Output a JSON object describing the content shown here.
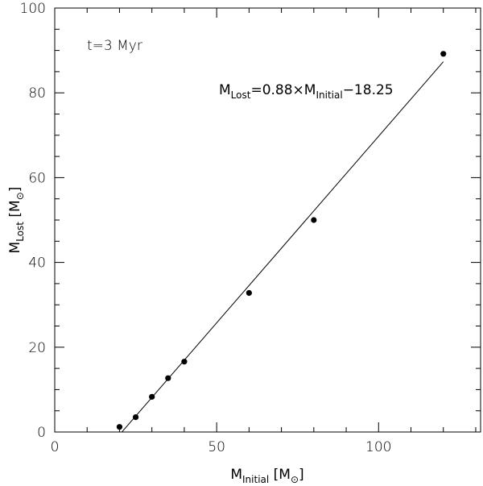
{
  "chart_data": {
    "type": "scatter",
    "annotation_time": "t=3 Myr",
    "fit_label": {
      "lhs_main": "M",
      "lhs_sub": "Lost",
      "mid": "=0.88×M",
      "rhs_sub": "Initial",
      "tail": "−18.25"
    },
    "fit": {
      "slope": 0.88,
      "intercept": -18.25,
      "x_range": [
        20.7,
        120
      ]
    },
    "xlabel": {
      "main": "M",
      "sub": "Initial",
      "unit_open": " [M",
      "unit_sym": "⊙",
      "unit_close": "]"
    },
    "ylabel": {
      "main": "M",
      "sub": "Lost",
      "unit_open": " [M",
      "unit_sym": "⊙",
      "unit_close": "]"
    },
    "xlim": [
      0,
      131.5
    ],
    "ylim": [
      0,
      100
    ],
    "x_ticks": [
      0,
      50,
      100
    ],
    "x_tick_labels": [
      "0",
      "50",
      "100"
    ],
    "y_ticks": [
      0,
      20,
      40,
      60,
      80,
      100
    ],
    "y_tick_labels": [
      "0",
      "20",
      "40",
      "60",
      "80",
      "100"
    ],
    "points": [
      {
        "x": 20,
        "y": 1.2
      },
      {
        "x": 25,
        "y": 3.5
      },
      {
        "x": 30,
        "y": 8.3
      },
      {
        "x": 35,
        "y": 12.7
      },
      {
        "x": 40,
        "y": 16.6
      },
      {
        "x": 60,
        "y": 32.8
      },
      {
        "x": 80,
        "y": 50.0
      },
      {
        "x": 120,
        "y": 89.2
      }
    ],
    "grid": false
  }
}
